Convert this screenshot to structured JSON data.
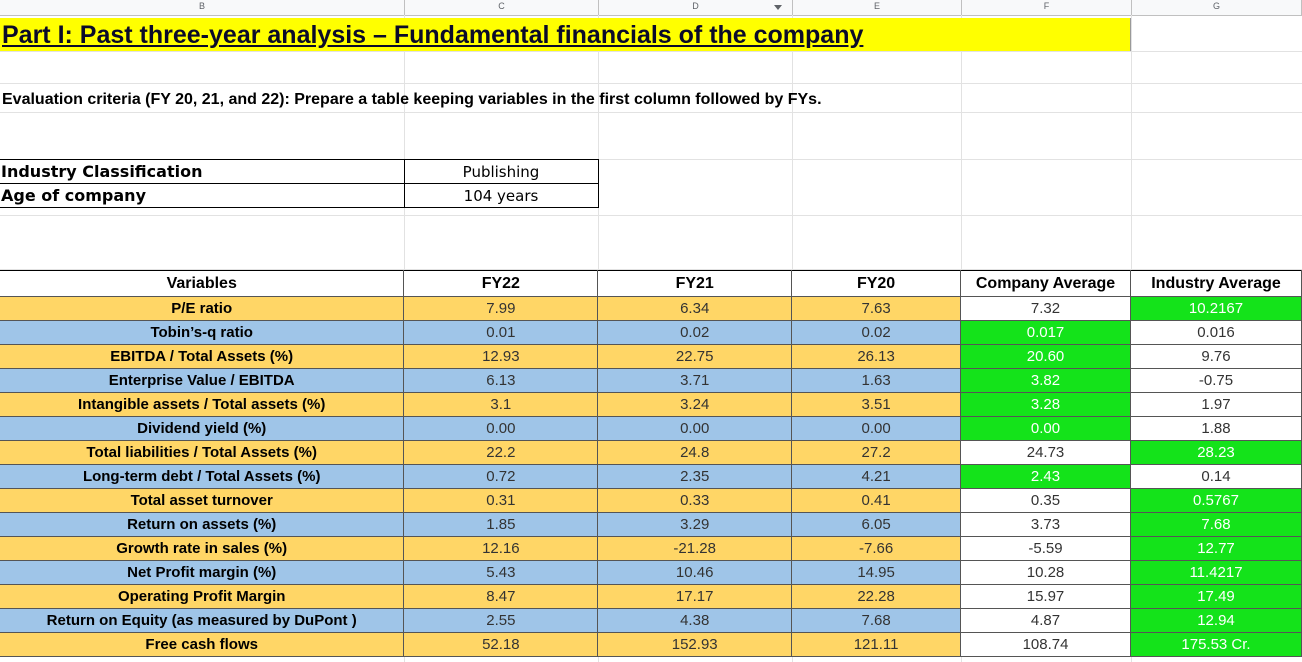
{
  "sheet": {
    "columns": [
      "B",
      "C",
      "D",
      "E",
      "F",
      "G"
    ],
    "title": "Part I: Past three-year analysis – Fundamental financials of the company",
    "criteria": "Evaluation criteria (FY 20, 21, and 22): Prepare a table keeping variables in the first column followed by FYs.",
    "info": [
      {
        "label": "Industry Classification",
        "value": "Publishing"
      },
      {
        "label": "Age of company",
        "value": "104 years"
      }
    ]
  },
  "table": {
    "headers": [
      "Variables",
      "FY22",
      "FY21",
      "FY20",
      "Company Average",
      "Industry Average"
    ],
    "rows": [
      {
        "label": "P/E ratio",
        "fy22": "7.99",
        "fy21": "6.34",
        "fy20": "7.63",
        "company": "7.32",
        "industry": "10.2167",
        "hl": "industry"
      },
      {
        "label": "Tobin’s-q ratio",
        "fy22": "0.01",
        "fy21": "0.02",
        "fy20": "0.02",
        "company": "0.017",
        "industry": "0.016",
        "hl": "company"
      },
      {
        "label": "EBITDA / Total Assets (%)",
        "fy22": "12.93",
        "fy21": "22.75",
        "fy20": "26.13",
        "company": "20.60",
        "industry": "9.76",
        "hl": "company"
      },
      {
        "label": "Enterprise Value / EBITDA",
        "fy22": "6.13",
        "fy21": "3.71",
        "fy20": "1.63",
        "company": "3.82",
        "industry": "-0.75",
        "hl": "company"
      },
      {
        "label": "Intangible assets / Total assets (%)",
        "fy22": "3.1",
        "fy21": "3.24",
        "fy20": "3.51",
        "company": "3.28",
        "industry": "1.97",
        "hl": "company"
      },
      {
        "label": "Dividend yield (%)",
        "fy22": "0.00",
        "fy21": "0.00",
        "fy20": "0.00",
        "company": "0.00",
        "industry": "1.88",
        "hl": "company"
      },
      {
        "label": "Total liabilities / Total Assets (%)",
        "fy22": "22.2",
        "fy21": "24.8",
        "fy20": "27.2",
        "company": "24.73",
        "industry": "28.23",
        "hl": "industry"
      },
      {
        "label": "Long-term debt / Total Assets (%)",
        "fy22": "0.72",
        "fy21": "2.35",
        "fy20": "4.21",
        "company": "2.43",
        "industry": "0.14",
        "hl": "company"
      },
      {
        "label": "Total asset turnover",
        "fy22": "0.31",
        "fy21": "0.33",
        "fy20": "0.41",
        "company": "0.35",
        "industry": "0.5767",
        "hl": "industry"
      },
      {
        "label": "Return on assets (%)",
        "fy22": "1.85",
        "fy21": "3.29",
        "fy20": "6.05",
        "company": "3.73",
        "industry": "7.68",
        "hl": "industry"
      },
      {
        "label": "Growth rate in sales (%)",
        "fy22": "12.16",
        "fy21": "-21.28",
        "fy20": "-7.66",
        "company": "-5.59",
        "industry": "12.77",
        "hl": "industry"
      },
      {
        "label": "Net Profit margin (%)",
        "fy22": "5.43",
        "fy21": "10.46",
        "fy20": "14.95",
        "company": "10.28",
        "industry": "11.4217",
        "hl": "industry"
      },
      {
        "label": "Operating Profit Margin",
        "fy22": "8.47",
        "fy21": "17.17",
        "fy20": "22.28",
        "company": "15.97",
        "industry": "17.49",
        "hl": "industry"
      },
      {
        "label": "Return on Equity (as measured by DuPont )",
        "fy22": "2.55",
        "fy21": "4.38",
        "fy20": "7.68",
        "company": "4.87",
        "industry": "12.94",
        "hl": "industry"
      },
      {
        "label": "Free cash flows",
        "fy22": "52.18",
        "fy21": "152.93",
        "fy20": "121.11",
        "company": "108.74",
        "industry": "175.53 Cr.",
        "hl": "industry"
      }
    ]
  }
}
